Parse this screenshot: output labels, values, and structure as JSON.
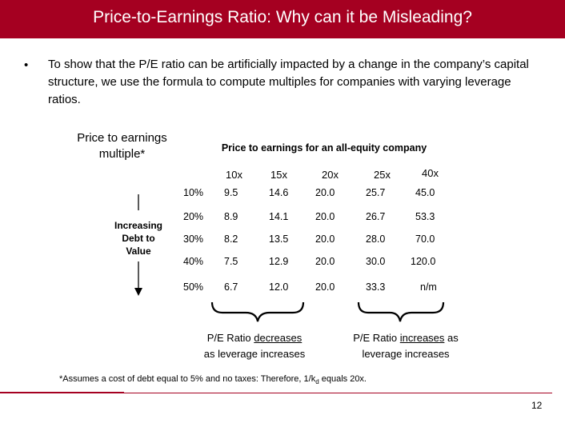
{
  "title": "Price-to-Earnings Ratio: Why can it be Misleading?",
  "bullet_char": "•",
  "intro": "To show that the P/E ratio can be artificially impacted by a change in the company’s capital structure, we use the formula to compute multiples for companies with varying leverage ratios.",
  "left_label": "Price to earnings multiple*",
  "top_label": "Price to earnings for an all-equity company",
  "side_label": "Increasing Debt to Value",
  "columns": [
    "10x",
    "15x",
    "20x",
    "25x",
    "40x"
  ],
  "rows": [
    {
      "pct": "10%",
      "vals": [
        "9.5",
        "14.6",
        "20.0",
        "25.7",
        "45.0"
      ]
    },
    {
      "pct": "20%",
      "vals": [
        "8.9",
        "14.1",
        "20.0",
        "26.7",
        "53.3"
      ]
    },
    {
      "pct": "30%",
      "vals": [
        "8.2",
        "13.5",
        "20.0",
        "28.0",
        "70.0"
      ]
    },
    {
      "pct": "40%",
      "vals": [
        "7.5",
        "12.9",
        "20.0",
        "30.0",
        "120.0"
      ]
    },
    {
      "pct": "50%",
      "vals": [
        "6.7",
        "12.0",
        "20.0",
        "33.3",
        "n/m"
      ]
    }
  ],
  "note_left": {
    "a": "P/E Ratio ",
    "b": "decreases",
    "c": "as leverage increases"
  },
  "note_right": {
    "a": "P/E Ratio ",
    "b": "increases",
    "c": " as leverage increases"
  },
  "footnote": {
    "a": "*Assumes a cost of debt equal to 5% and no taxes: Therefore, 1/k",
    "sub": "d",
    "b": " equals 20x."
  },
  "page_number": "12",
  "colors": {
    "accent": "#a50021"
  }
}
